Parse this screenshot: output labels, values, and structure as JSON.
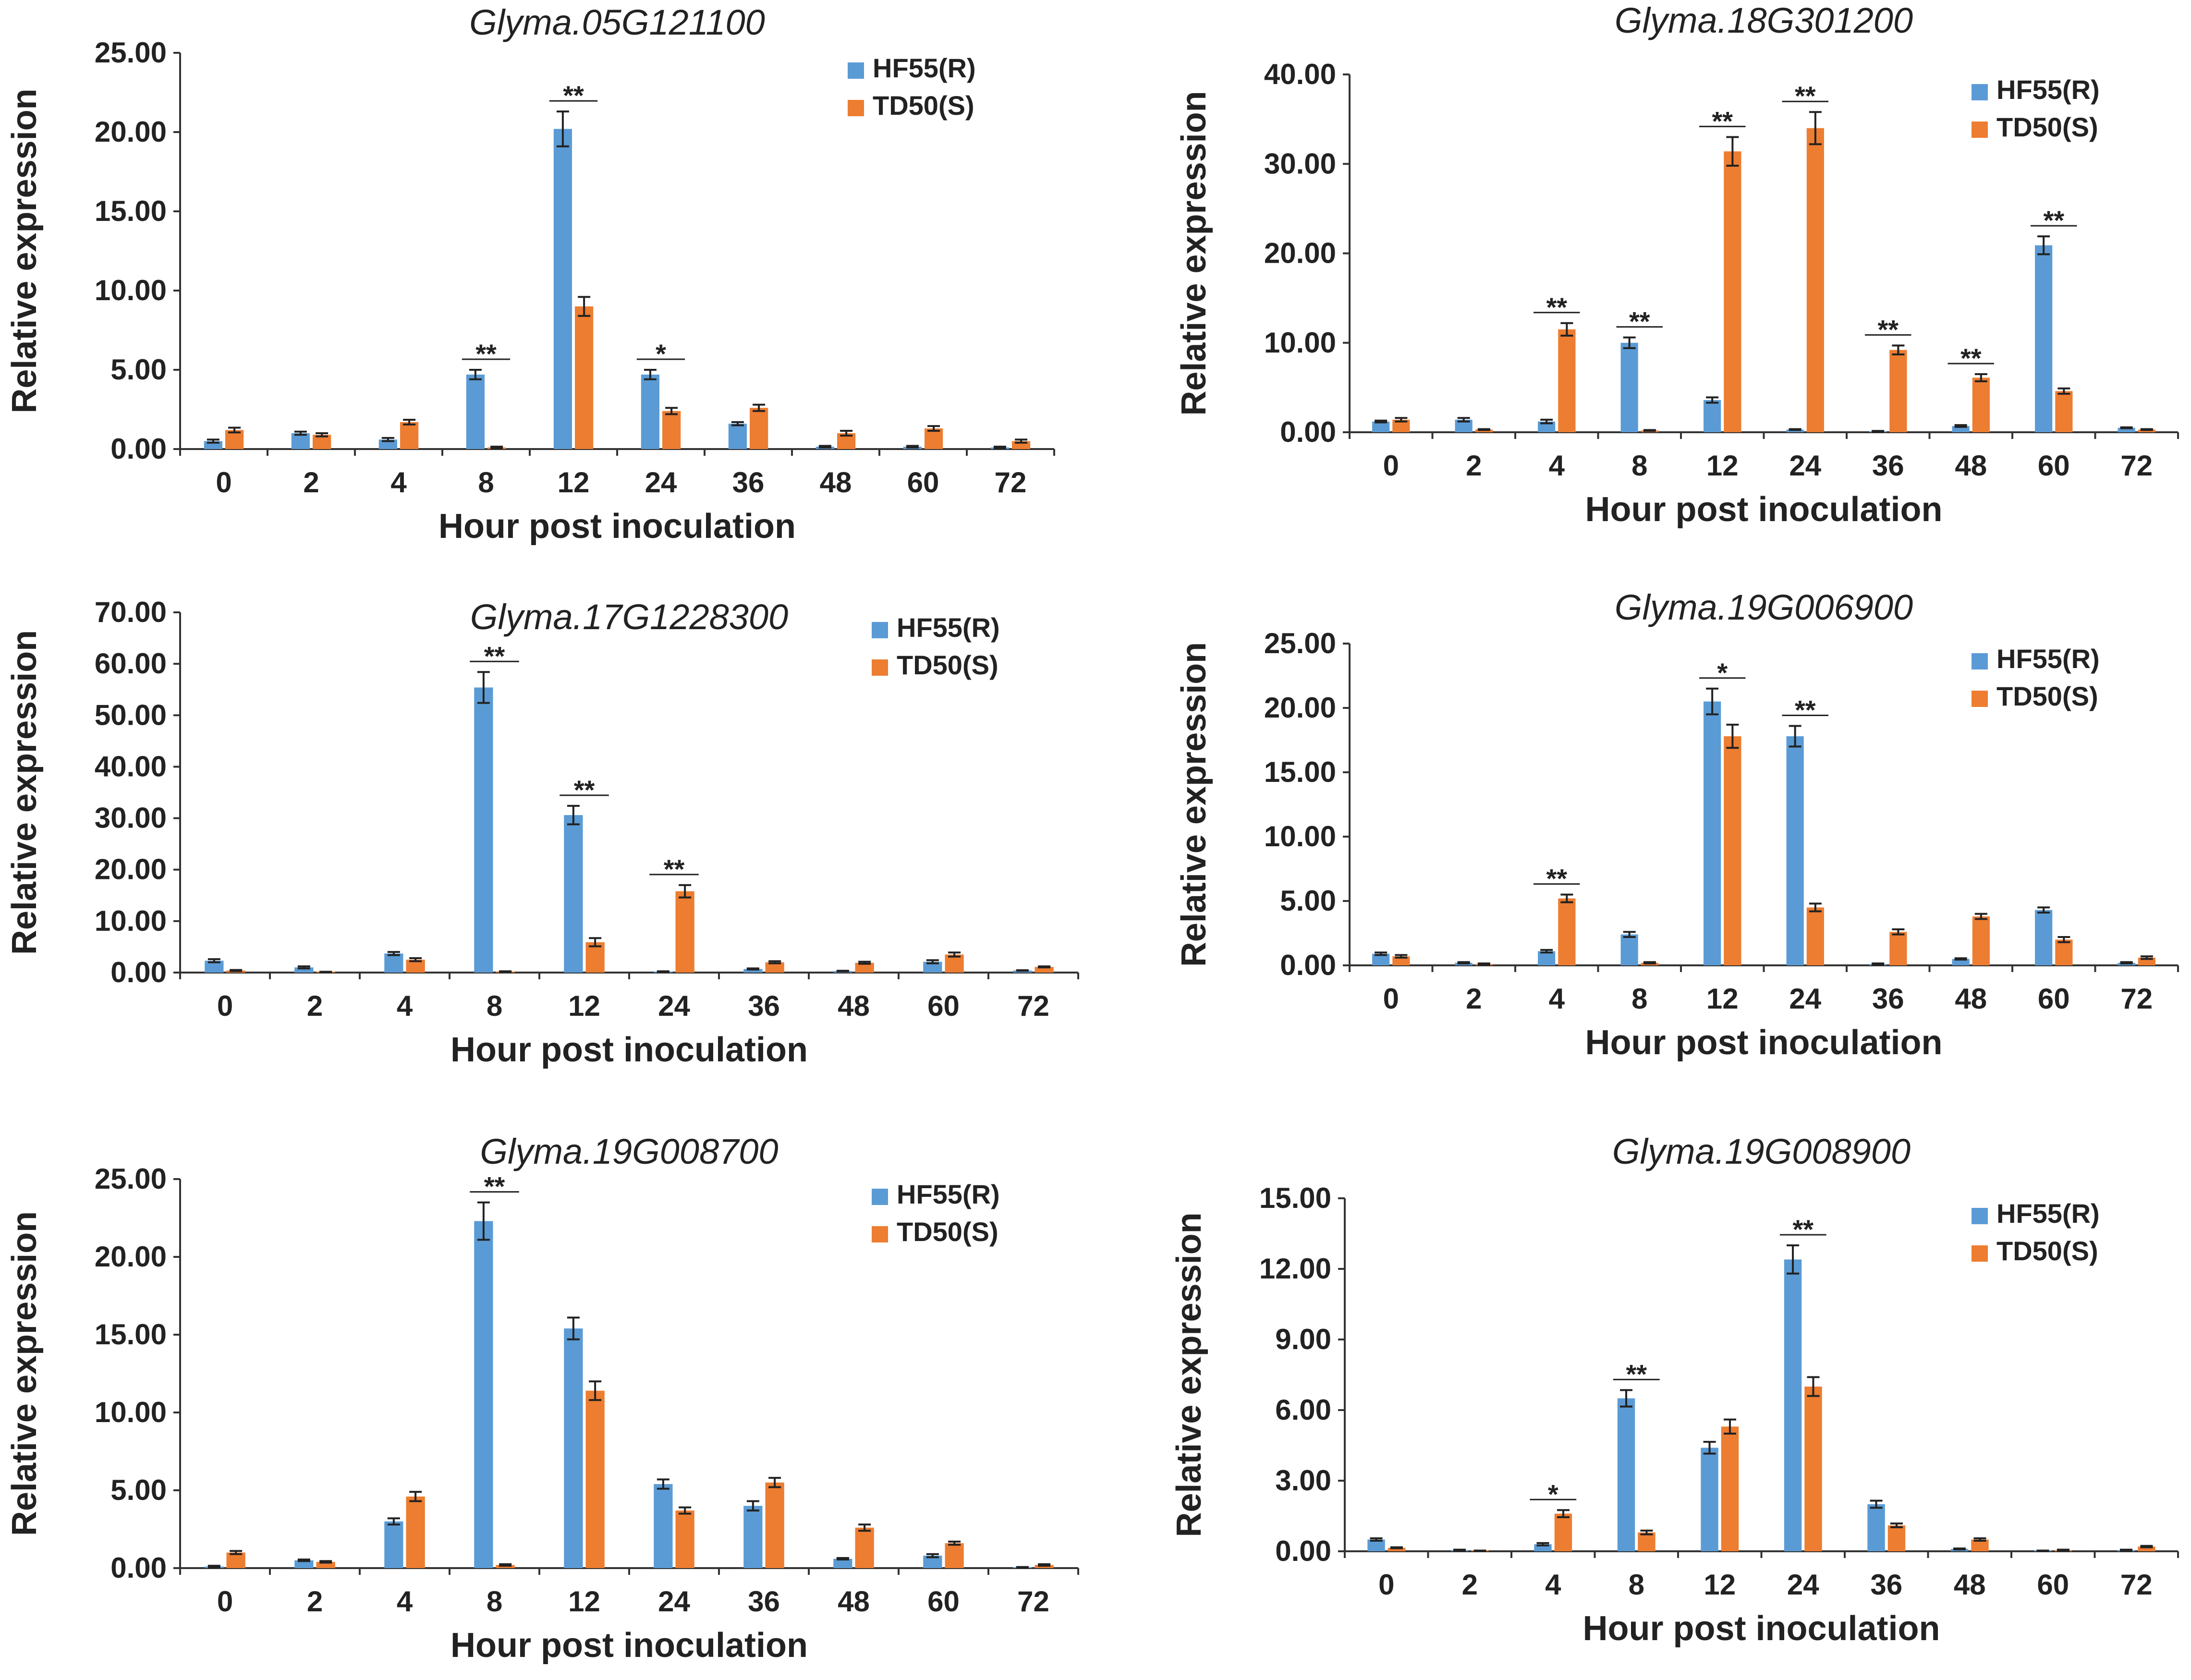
{
  "figure": {
    "xlabel": "Hour post inoculation",
    "ylabel": "Relative expression",
    "legend": [
      "HF55(R)",
      "TD50(S)"
    ]
  },
  "colors": {
    "hf55": "#5b9bd5",
    "td50": "#ed7d31"
  },
  "chart_data": [
    {
      "type": "bar",
      "title": "Glyma.05G121100",
      "xlabel": "Hour post inoculation",
      "ylabel": "Relative expression",
      "categories": [
        "0",
        "2",
        "4",
        "8",
        "12",
        "24",
        "36",
        "48",
        "60",
        "72"
      ],
      "ylim": [
        0,
        25
      ],
      "yticks": [
        "0.00",
        "5.00",
        "10.00",
        "15.00",
        "20.00",
        "25.00"
      ],
      "legend_position": "top-right",
      "series": [
        {
          "name": "HF55(R)",
          "values": [
            0.5,
            1.0,
            0.6,
            4.7,
            20.2,
            4.7,
            1.6,
            0.15,
            0.15,
            0.1
          ],
          "errors": [
            0.1,
            0.1,
            0.1,
            0.3,
            1.1,
            0.3,
            0.1,
            0.05,
            0.05,
            0.05
          ]
        },
        {
          "name": "TD50(S)",
          "values": [
            1.2,
            0.9,
            1.7,
            0.1,
            9.0,
            2.4,
            2.6,
            1.0,
            1.3,
            0.5
          ],
          "errors": [
            0.15,
            0.1,
            0.15,
            0.05,
            0.6,
            0.2,
            0.2,
            0.15,
            0.15,
            0.1
          ]
        }
      ],
      "significance": [
        {
          "category": "8",
          "label": "**"
        },
        {
          "category": "12",
          "label": "**"
        },
        {
          "category": "24",
          "label": "*"
        }
      ]
    },
    {
      "type": "bar",
      "title": "Glyma.18G301200",
      "xlabel": "Hour post inoculation",
      "ylabel": "Relative expression",
      "categories": [
        "0",
        "2",
        "4",
        "8",
        "12",
        "24",
        "36",
        "48",
        "60",
        "72"
      ],
      "ylim": [
        0,
        40
      ],
      "yticks": [
        "0.00",
        "10.00",
        "20.00",
        "30.00",
        "40.00"
      ],
      "legend_position": "top-right",
      "series": [
        {
          "name": "HF55(R)",
          "values": [
            1.2,
            1.4,
            1.2,
            10.0,
            3.6,
            0.3,
            0.1,
            0.7,
            20.9,
            0.5
          ],
          "errors": [
            0.1,
            0.2,
            0.2,
            0.6,
            0.3,
            0.05,
            0.05,
            0.1,
            1.0,
            0.05
          ]
        },
        {
          "name": "TD50(S)",
          "values": [
            1.4,
            0.3,
            11.5,
            0.2,
            31.4,
            34.0,
            9.2,
            6.1,
            4.6,
            0.3
          ],
          "errors": [
            0.2,
            0.05,
            0.7,
            0.05,
            1.6,
            1.8,
            0.5,
            0.4,
            0.3,
            0.05
          ]
        }
      ],
      "significance": [
        {
          "category": "4",
          "label": "**"
        },
        {
          "category": "8",
          "label": "**"
        },
        {
          "category": "12",
          "label": "**"
        },
        {
          "category": "24",
          "label": "**"
        },
        {
          "category": "36",
          "label": "**"
        },
        {
          "category": "48",
          "label": "**"
        },
        {
          "category": "60",
          "label": "**"
        }
      ]
    },
    {
      "type": "bar",
      "title": "Glyma.17G1228300",
      "xlabel": "Hour post inoculation",
      "ylabel": "Relative expression",
      "categories": [
        "0",
        "2",
        "4",
        "8",
        "12",
        "24",
        "36",
        "48",
        "60",
        "72"
      ],
      "ylim": [
        0,
        70
      ],
      "yticks": [
        "0.00",
        "10.00",
        "20.00",
        "30.00",
        "40.00",
        "50.00",
        "60.00",
        "70.00"
      ],
      "legend_position": "top-right",
      "series": [
        {
          "name": "HF55(R)",
          "values": [
            2.3,
            1.0,
            3.7,
            55.4,
            30.6,
            0.2,
            0.7,
            0.3,
            2.1,
            0.4
          ],
          "errors": [
            0.3,
            0.2,
            0.3,
            3.0,
            1.8,
            0.05,
            0.1,
            0.05,
            0.3,
            0.05
          ]
        },
        {
          "name": "TD50(S)",
          "values": [
            0.4,
            0.1,
            2.5,
            0.2,
            5.9,
            15.8,
            2.0,
            1.9,
            3.5,
            1.1
          ],
          "errors": [
            0.1,
            0.05,
            0.3,
            0.05,
            0.8,
            1.2,
            0.2,
            0.2,
            0.4,
            0.1
          ]
        }
      ],
      "significance": [
        {
          "category": "8",
          "label": "**"
        },
        {
          "category": "12",
          "label": "**"
        },
        {
          "category": "24",
          "label": "**"
        }
      ]
    },
    {
      "type": "bar",
      "title": "Glyma.19G006900",
      "xlabel": "Hour post inoculation",
      "ylabel": "Relative expression",
      "categories": [
        "0",
        "2",
        "4",
        "8",
        "12",
        "24",
        "36",
        "48",
        "60",
        "72"
      ],
      "ylim": [
        0,
        25
      ],
      "yticks": [
        "0.00",
        "5.00",
        "10.00",
        "15.00",
        "20.00",
        "25.00"
      ],
      "legend_position": "top-right",
      "series": [
        {
          "name": "HF55(R)",
          "values": [
            0.9,
            0.2,
            1.1,
            2.4,
            20.5,
            17.8,
            0.1,
            0.5,
            4.3,
            0.2
          ],
          "errors": [
            0.1,
            0.05,
            0.1,
            0.2,
            1.0,
            0.8,
            0.05,
            0.05,
            0.2,
            0.05
          ]
        },
        {
          "name": "TD50(S)",
          "values": [
            0.7,
            0.1,
            5.2,
            0.2,
            17.8,
            4.5,
            2.6,
            3.8,
            2.0,
            0.6
          ],
          "errors": [
            0.1,
            0.05,
            0.3,
            0.05,
            0.9,
            0.3,
            0.2,
            0.2,
            0.2,
            0.1
          ]
        }
      ],
      "significance": [
        {
          "category": "4",
          "label": "**"
        },
        {
          "category": "12",
          "label": "*"
        },
        {
          "category": "24",
          "label": "**"
        }
      ]
    },
    {
      "type": "bar",
      "title": "Glyma.19G008700",
      "xlabel": "Hour post inoculation",
      "ylabel": "Relative expression",
      "categories": [
        "0",
        "2",
        "4",
        "8",
        "12",
        "24",
        "36",
        "48",
        "60",
        "72"
      ],
      "ylim": [
        0,
        25
      ],
      "yticks": [
        "0.00",
        "5.00",
        "10.00",
        "15.00",
        "20.00",
        "25.00"
      ],
      "legend_position": "top-right",
      "series": [
        {
          "name": "HF55(R)",
          "values": [
            0.1,
            0.5,
            3.0,
            22.3,
            15.4,
            5.4,
            4.0,
            0.6,
            0.8,
            0.05
          ],
          "errors": [
            0.05,
            0.05,
            0.2,
            1.2,
            0.7,
            0.3,
            0.3,
            0.05,
            0.1,
            0.02
          ]
        },
        {
          "name": "TD50(S)",
          "values": [
            1.0,
            0.4,
            4.6,
            0.2,
            11.4,
            3.7,
            5.5,
            2.6,
            1.6,
            0.2
          ],
          "errors": [
            0.1,
            0.05,
            0.3,
            0.05,
            0.6,
            0.2,
            0.3,
            0.2,
            0.1,
            0.05
          ]
        }
      ],
      "significance": [
        {
          "category": "8",
          "label": "**"
        }
      ]
    },
    {
      "type": "bar",
      "title": "Glyma.19G008900",
      "xlabel": "Hour post inoculation",
      "ylabel": "Relative expression",
      "categories": [
        "0",
        "2",
        "4",
        "8",
        "12",
        "24",
        "36",
        "48",
        "60",
        "72"
      ],
      "ylim": [
        0,
        15
      ],
      "yticks": [
        "0.00",
        "3.00",
        "6.00",
        "9.00",
        "12.00",
        "15.00"
      ],
      "legend_position": "top-right",
      "series": [
        {
          "name": "HF55(R)",
          "values": [
            0.5,
            0.05,
            0.3,
            6.5,
            4.4,
            12.4,
            2.0,
            0.1,
            0.02,
            0.05
          ],
          "errors": [
            0.05,
            0.02,
            0.05,
            0.35,
            0.25,
            0.6,
            0.15,
            0.02,
            0.01,
            0.02
          ]
        },
        {
          "name": "TD50(S)",
          "values": [
            0.15,
            0.02,
            1.6,
            0.8,
            5.3,
            7.0,
            1.1,
            0.5,
            0.05,
            0.2
          ],
          "errors": [
            0.02,
            0.01,
            0.15,
            0.08,
            0.3,
            0.4,
            0.08,
            0.05,
            0.02,
            0.03
          ]
        }
      ],
      "significance": [
        {
          "category": "4",
          "label": "*"
        },
        {
          "category": "8",
          "label": "**"
        },
        {
          "category": "24",
          "label": "**"
        }
      ]
    }
  ]
}
